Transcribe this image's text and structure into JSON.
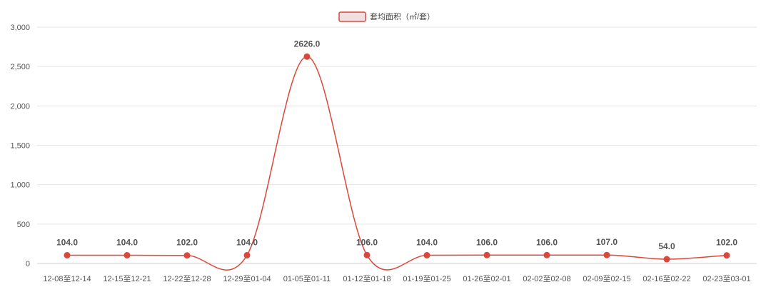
{
  "chart_data": {
    "type": "line",
    "title": "",
    "xlabel": "",
    "ylabel": "",
    "ylim": [
      0,
      3000
    ],
    "y_ticks": [
      0,
      500,
      1000,
      1500,
      2000,
      2500,
      3000
    ],
    "y_tick_labels": [
      "0",
      "500",
      "1,000",
      "1,500",
      "2,000",
      "2,500",
      "3,000"
    ],
    "grid": true,
    "smooth": true,
    "legend_position": "top-center",
    "categories": [
      "12-08至12-14",
      "12-15至12-21",
      "12-22至12-28",
      "12-29至01-04",
      "01-05至01-11",
      "01-12至01-18",
      "01-19至01-25",
      "01-26至02-01",
      "02-02至02-08",
      "02-09至02-15",
      "02-16至02-22",
      "02-23至03-01"
    ],
    "series": [
      {
        "name": "套均面积（㎡/套）",
        "color": "#d9483b",
        "legend_fill": "#f2dede",
        "values": [
          104.0,
          104.0,
          102.0,
          104.0,
          2626.0,
          106.0,
          104.0,
          106.0,
          106.0,
          107.0,
          54.0,
          102.0
        ],
        "labels": [
          "104.0",
          "104.0",
          "102.0",
          "104.0",
          "2626.0",
          "106.0",
          "104.0",
          "106.0",
          "106.0",
          "107.0",
          "54.0",
          "102.0"
        ]
      }
    ]
  }
}
